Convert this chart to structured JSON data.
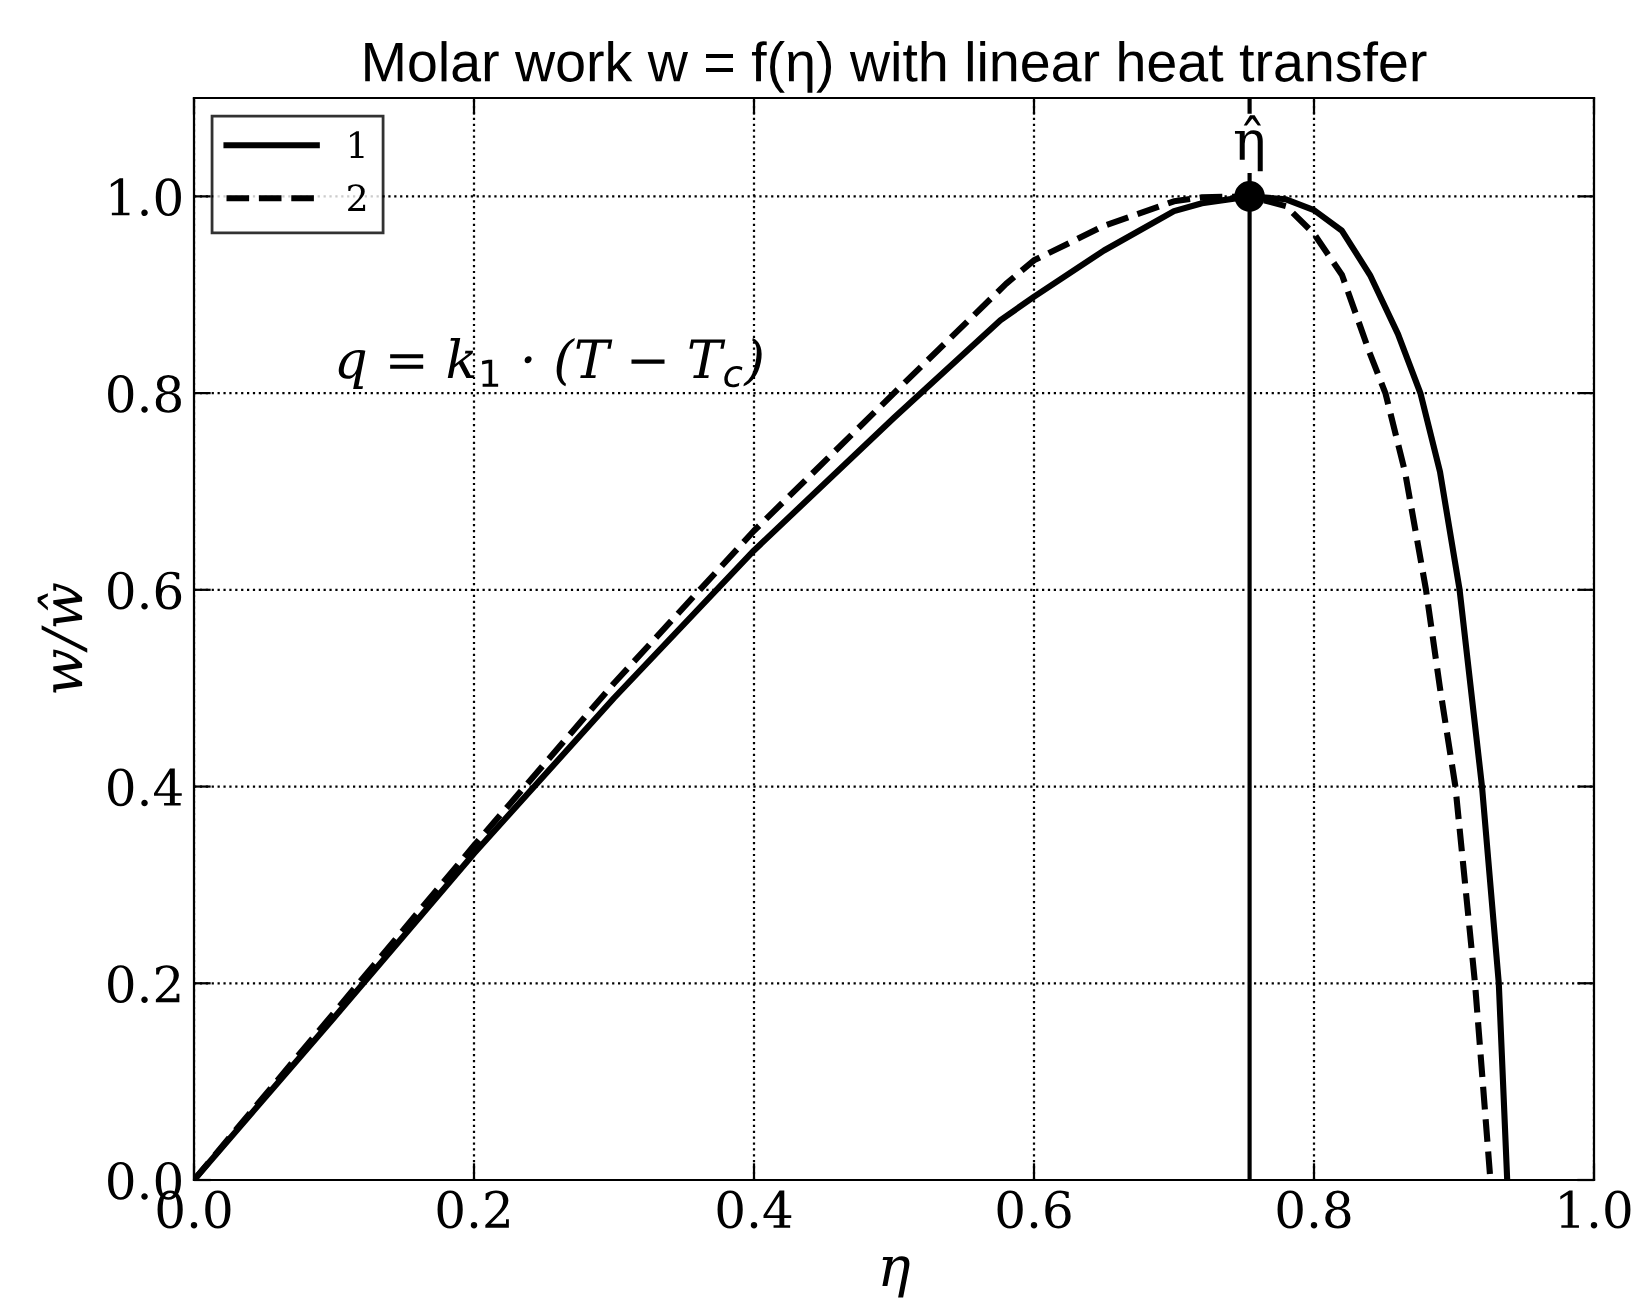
{
  "chart_data": {
    "type": "line",
    "title": "Molar work w = f(η) with linear heat transfer",
    "xlabel": "η",
    "ylabel": "w/ŵ",
    "series": [
      {
        "name": "1",
        "color": "#000000",
        "line_style": "solid",
        "x": [
          0,
          0.1,
          0.2,
          0.3,
          0.4,
          0.5,
          0.576,
          0.6,
          0.65,
          0.7,
          0.72,
          0.754,
          0.78,
          0.8,
          0.82,
          0.84,
          0.86,
          0.876,
          0.89,
          0.904,
          0.92,
          0.932,
          0.938
        ],
        "values": [
          0,
          0.165,
          0.332,
          0.49,
          0.64,
          0.775,
          0.874,
          0.898,
          0.945,
          0.985,
          0.993,
          1.0,
          0.997,
          0.986,
          0.965,
          0.92,
          0.86,
          0.8,
          0.72,
          0.6,
          0.4,
          0.2,
          0
        ]
      },
      {
        "name": "2",
        "color": "#000000",
        "line_style": "dashed",
        "x": [
          0,
          0.1,
          0.2,
          0.3,
          0.4,
          0.5,
          0.58,
          0.6,
          0.65,
          0.7,
          0.72,
          0.754,
          0.78,
          0.8,
          0.82,
          0.84,
          0.851,
          0.865,
          0.88,
          0.89,
          0.901,
          0.915,
          0.926
        ],
        "values": [
          0,
          0.17,
          0.34,
          0.505,
          0.66,
          0.8,
          0.911,
          0.935,
          0.97,
          0.995,
          0.999,
          1.0,
          0.99,
          0.962,
          0.92,
          0.84,
          0.8,
          0.72,
          0.6,
          0.5,
          0.4,
          0.2,
          0
        ]
      },
      {
        "type": "scatter",
        "color": "#000000",
        "marker": "circle",
        "x": [
          0.754
        ],
        "values": [
          1.0
        ]
      }
    ],
    "ref_lines": [
      {
        "axis": "x",
        "value": 0.754,
        "color": "#000000",
        "line_style": "solid"
      }
    ],
    "annotations": [
      {
        "text": "η̂",
        "x": 0.754,
        "y": 1.0
      },
      "q = k$_{1}$ · (T − T$_{c}$)"
    ],
    "xlim": [
      0,
      1.0
    ],
    "ylim": [
      0,
      1.1
    ],
    "xticks": [
      {
        "value": 0,
        "label": "0.0"
      },
      0.2,
      0.4,
      0.6,
      0.8,
      {
        "value": 1,
        "label": "1.0"
      }
    ],
    "yticks": [
      {
        "value": 0,
        "label": "0.0"
      },
      0.2,
      0.4,
      0.6,
      0.8,
      {
        "value": 1,
        "label": "1.0"
      }
    ],
    "grid": true,
    "legend": "top left"
  }
}
